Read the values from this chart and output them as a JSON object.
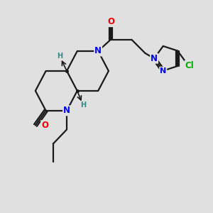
{
  "background_color": "#e0e0e0",
  "bond_color": "#1a1a1a",
  "N_color": "#0000ee",
  "O_color": "#ee0000",
  "Cl_color": "#00aa00",
  "H_color": "#2e8b8b",
  "bond_width": 1.6,
  "font_size_atom": 8.5,
  "font_size_small": 7.0,
  "xlim": [
    0,
    10
  ],
  "ylim": [
    0,
    10
  ]
}
